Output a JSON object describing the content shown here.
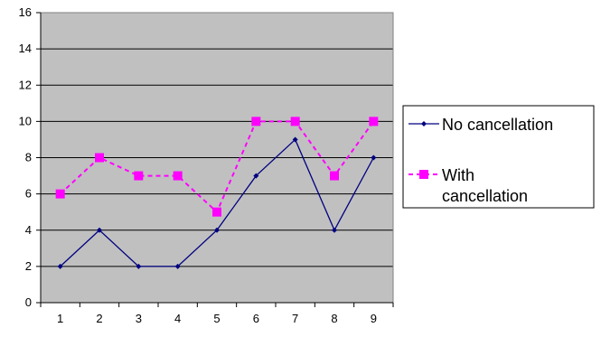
{
  "chart_data": {
    "type": "line",
    "x": [
      1,
      2,
      3,
      4,
      5,
      6,
      7,
      8,
      9
    ],
    "categories": [
      "1",
      "2",
      "3",
      "4",
      "5",
      "6",
      "7",
      "8",
      "9"
    ],
    "ylim": [
      0,
      16
    ],
    "yticks": [
      "0",
      "2",
      "4",
      "6",
      "8",
      "10",
      "12",
      "14",
      "16"
    ],
    "grid": true,
    "legend_position": "right",
    "plot_background": "#c0c0c0",
    "series": [
      {
        "name": "No cancellation",
        "legend_lines": [
          "No cancellation"
        ],
        "values": [
          2,
          4,
          2,
          2,
          4,
          7,
          9,
          4,
          8
        ],
        "color": "#000080",
        "line_style": "solid",
        "marker": "diamond"
      },
      {
        "name": "With cancellation",
        "legend_lines": [
          "With",
          "cancellation"
        ],
        "values": [
          6,
          8,
          7,
          7,
          5,
          10,
          10,
          7,
          10
        ],
        "color": "#ff00ff",
        "line_style": "dashed",
        "marker": "square"
      }
    ]
  }
}
